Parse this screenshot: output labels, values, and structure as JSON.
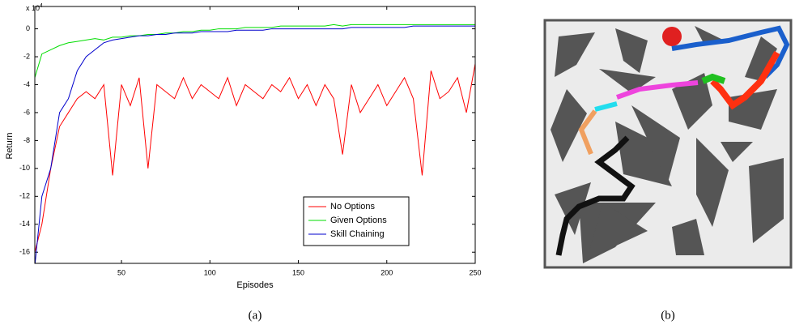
{
  "chart_data": {
    "type": "line",
    "y_label": "Return",
    "x_label": "Episodes",
    "y_multiplier": {
      "base": "x 10",
      "exponent": "4"
    },
    "caption": "(a)",
    "x": [
      1,
      5,
      10,
      15,
      20,
      25,
      30,
      35,
      40,
      45,
      50,
      55,
      60,
      65,
      70,
      75,
      80,
      85,
      90,
      95,
      100,
      105,
      110,
      115,
      120,
      125,
      130,
      135,
      140,
      145,
      150,
      155,
      160,
      165,
      170,
      175,
      180,
      185,
      190,
      195,
      200,
      205,
      210,
      215,
      220,
      225,
      230,
      235,
      240,
      245,
      250
    ],
    "series": [
      {
        "name": "No Options",
        "color": "#ff0000",
        "values": [
          -16,
          -14,
          -10,
          -7,
          -6,
          -5,
          -4.5,
          -5,
          -4,
          -10.5,
          -4,
          -5.5,
          -3.5,
          -10,
          -4,
          -4.5,
          -5,
          -3.5,
          -5,
          -4,
          -4.5,
          -5,
          -3.5,
          -5.5,
          -4,
          -4.5,
          -5,
          -4,
          -4.5,
          -3.5,
          -5,
          -4,
          -5.5,
          -4,
          -5,
          -9,
          -4,
          -6,
          -5,
          -4,
          -5.5,
          -4.5,
          -3.5,
          -5,
          -10.5,
          -3,
          -5,
          -4.5,
          -3.5,
          -6,
          -2.5
        ]
      },
      {
        "name": "Given Options",
        "color": "#00dd00",
        "values": [
          -3.5,
          -1.8,
          -1.5,
          -1.2,
          -1,
          -0.9,
          -0.8,
          -0.7,
          -0.8,
          -0.6,
          -0.6,
          -0.5,
          -0.5,
          -0.4,
          -0.4,
          -0.3,
          -0.3,
          -0.2,
          -0.2,
          -0.1,
          -0.1,
          0,
          0,
          0,
          0.1,
          0.1,
          0.1,
          0.1,
          0.2,
          0.2,
          0.2,
          0.2,
          0.2,
          0.2,
          0.3,
          0.2,
          0.3,
          0.3,
          0.3,
          0.3,
          0.3,
          0.3,
          0.3,
          0.3,
          0.3,
          0.3,
          0.3,
          0.3,
          0.3,
          0.3,
          0.3
        ]
      },
      {
        "name": "Skill Chaining",
        "color": "#0000cc",
        "values": [
          -17,
          -12,
          -10,
          -6,
          -5,
          -3,
          -2,
          -1.5,
          -1,
          -0.8,
          -0.7,
          -0.6,
          -0.5,
          -0.5,
          -0.4,
          -0.4,
          -0.3,
          -0.3,
          -0.3,
          -0.2,
          -0.2,
          -0.2,
          -0.2,
          -0.1,
          -0.1,
          -0.1,
          -0.1,
          0,
          0,
          0,
          0,
          0,
          0,
          0,
          0,
          0,
          0.1,
          0.1,
          0.1,
          0.1,
          0.1,
          0.1,
          0.1,
          0.2,
          0.2,
          0.2,
          0.2,
          0.2,
          0.2,
          0.2,
          0.2
        ]
      }
    ],
    "xlim": [
      1,
      250
    ],
    "xticks": [
      50,
      100,
      150,
      200,
      250
    ],
    "ylim": [
      -16.8,
      1.6
    ],
    "yticks": [
      -16,
      -14,
      -12,
      -10,
      -8,
      -6,
      -4,
      -2,
      0
    ],
    "legend": "lower right"
  },
  "figure_b": {
    "caption": "(b)"
  }
}
